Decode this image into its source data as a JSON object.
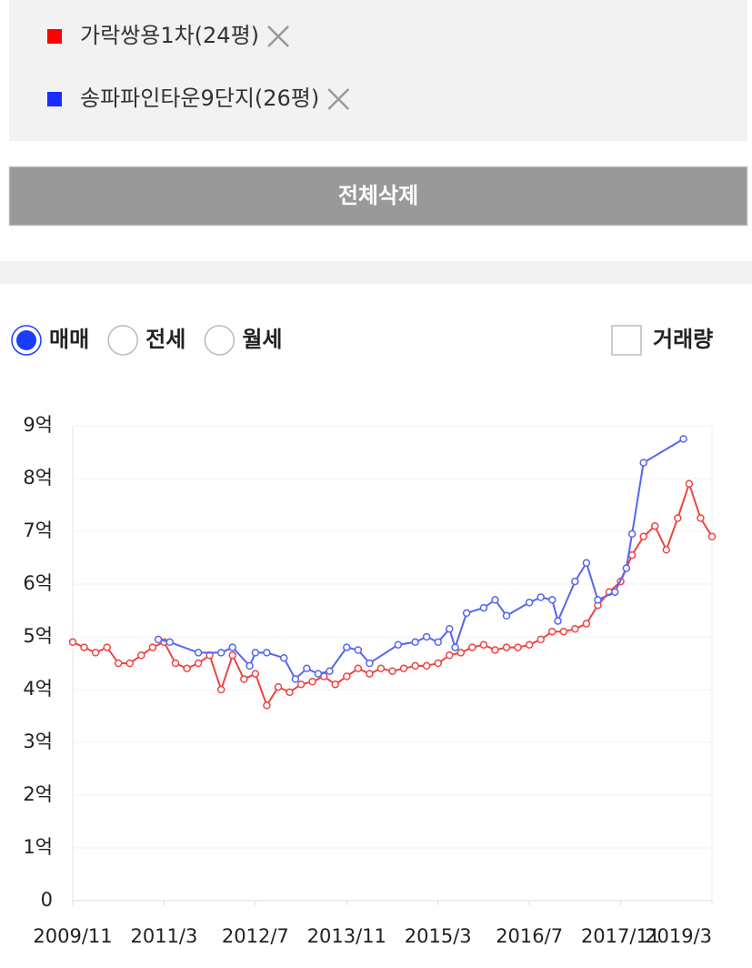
{
  "ui": {
    "delete_all": "전체삭제",
    "radios": [
      {
        "label": "매매",
        "checked": true
      },
      {
        "label": "전세",
        "checked": false
      },
      {
        "label": "월세",
        "checked": false
      }
    ],
    "checkbox": {
      "label": "거래량",
      "checked": false
    }
  },
  "chart_data": {
    "type": "line",
    "series": [
      {
        "name": "가락쌍용1차(24평)",
        "color": "#ee4444",
        "legend_color": "#ff0000",
        "x": [
          "2009/11",
          "2010/1",
          "2010/3",
          "2010/5",
          "2010/7",
          "2010/9",
          "2010/11",
          "2011/1",
          "2011/3",
          "2011/5",
          "2011/7",
          "2011/9",
          "2011/11",
          "2012/1",
          "2012/3",
          "2012/5",
          "2012/7",
          "2012/9",
          "2012/11",
          "2013/1",
          "2013/3",
          "2013/5",
          "2013/7",
          "2013/9",
          "2013/11",
          "2014/1",
          "2014/3",
          "2014/5",
          "2014/7",
          "2014/9",
          "2014/11",
          "2015/1",
          "2015/3",
          "2015/5",
          "2015/7",
          "2015/9",
          "2015/11",
          "2016/1",
          "2016/3",
          "2016/5",
          "2016/7",
          "2016/9",
          "2016/11",
          "2017/1",
          "2017/3",
          "2017/5",
          "2017/7",
          "2017/9",
          "2017/11",
          "2018/1",
          "2018/3",
          "2018/5",
          "2018/7",
          "2018/9",
          "2018/11",
          "2019/1",
          "2019/3"
        ],
        "values": [
          4.9,
          4.8,
          4.7,
          4.8,
          4.5,
          4.5,
          4.65,
          4.8,
          4.9,
          4.5,
          4.4,
          4.5,
          4.65,
          4.0,
          4.65,
          4.2,
          4.3,
          3.7,
          4.05,
          3.95,
          4.1,
          4.15,
          4.25,
          4.1,
          4.25,
          4.4,
          4.3,
          4.4,
          4.35,
          4.4,
          4.45,
          4.45,
          4.5,
          4.65,
          4.7,
          4.8,
          4.85,
          4.75,
          4.8,
          4.8,
          4.85,
          4.95,
          5.1,
          5.1,
          5.15,
          5.25,
          5.6,
          5.85,
          6.05,
          6.55,
          6.9,
          7.1,
          6.65,
          7.25,
          7.9,
          7.25,
          6.9
        ]
      },
      {
        "name": "송파파인타운9단지(26평)",
        "color": "#5566ee",
        "legend_color": "#1a2cff",
        "x": [
          "2011/2",
          "2011/4",
          "2011/9",
          "2012/1",
          "2012/3",
          "2012/6",
          "2012/7",
          "2012/9",
          "2012/12",
          "2013/2",
          "2013/4",
          "2013/6",
          "2013/8",
          "2013/11",
          "2014/1",
          "2014/3",
          "2014/8",
          "2014/11",
          "2015/1",
          "2015/3",
          "2015/5",
          "2015/6",
          "2015/8",
          "2015/11",
          "2016/1",
          "2016/3",
          "2016/7",
          "2016/9",
          "2016/11",
          "2016/12",
          "2017/3",
          "2017/5",
          "2017/7",
          "2017/10",
          "2017/12",
          "2018/1",
          "2018/3",
          "2018/10"
        ],
        "values": [
          4.95,
          4.9,
          4.7,
          4.7,
          4.8,
          4.45,
          4.7,
          4.7,
          4.6,
          4.2,
          4.4,
          4.3,
          4.35,
          4.8,
          4.75,
          4.5,
          4.85,
          4.9,
          5.0,
          4.9,
          5.15,
          4.8,
          5.45,
          5.55,
          5.7,
          5.4,
          5.65,
          5.75,
          5.7,
          5.3,
          6.05,
          6.4,
          5.7,
          5.85,
          6.3,
          6.95,
          8.3,
          8.75
        ]
      }
    ],
    "xlim": [
      "2009/11",
      "2019/3"
    ],
    "xticks": [
      "2009/11",
      "2011/3",
      "2012/7",
      "2013/11",
      "2015/3",
      "2016/7",
      "2017/11",
      "2019/3"
    ],
    "ylim": [
      0,
      9
    ],
    "yticks": [
      0,
      {
        "value": 1,
        "label": "1억"
      },
      {
        "value": 2,
        "label": "2억"
      },
      {
        "value": 3,
        "label": "3억"
      },
      {
        "value": 4,
        "label": "4억"
      },
      {
        "value": 5,
        "label": "5억"
      },
      {
        "value": 6,
        "label": "6억"
      },
      {
        "value": 7,
        "label": "7억"
      },
      {
        "value": 8,
        "label": "8억"
      },
      {
        "value": 9,
        "label": "9억"
      }
    ],
    "grid": true
  }
}
